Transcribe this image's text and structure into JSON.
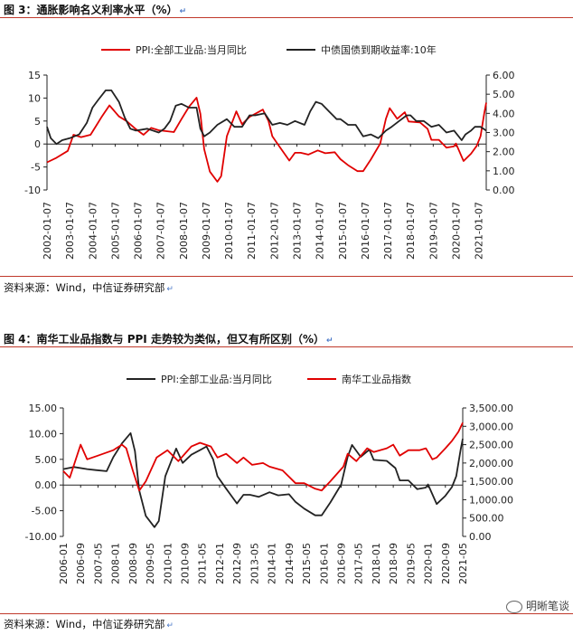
{
  "figure3": {
    "title": "图 3：通胀影响名义利率水平（%）",
    "source": "资料来源：Wind，中信证券研究部"
  },
  "figure4": {
    "title": "图 4：南华工业品指数与 PPI 走势较为类似，但又有所区别（%）",
    "source": "资料来源：Wind，中信证券研究部"
  },
  "watermark": "明晰笔谈",
  "chart_data": [
    {
      "type": "line",
      "title": "",
      "legend_position": "top",
      "x_start": "2002-01",
      "x_end": "2021-05",
      "x_tick_labels": [
        "2002-01-07",
        "2003-01-07",
        "2004-01-07",
        "2005-01-07",
        "2006-01-07",
        "2007-01-07",
        "2008-01-07",
        "2009-01-07",
        "2010-01-07",
        "2011-01-07",
        "2012-01-07",
        "2013-01-07",
        "2014-01-07",
        "2015-01-07",
        "2016-01-07",
        "2017-01-07",
        "2018-01-07",
        "2019-01-07",
        "2020-01-07",
        "2021-01-07"
      ],
      "y_left": {
        "min": -10,
        "max": 15,
        "ticks": [
          -10,
          -5,
          0,
          5,
          10,
          15
        ]
      },
      "y_right": {
        "min": 0,
        "max": 6,
        "ticks": [
          "0.00",
          "1.00",
          "2.00",
          "3.00",
          "4.00",
          "5.00",
          "6.00"
        ]
      },
      "series": [
        {
          "name": "PPI:全部工业品:当月同比",
          "axis": "left",
          "color": "#e00000",
          "points": [
            [
              "2002-01",
              -4.0
            ],
            [
              "2002-06",
              -3.0
            ],
            [
              "2002-12",
              -1.5
            ],
            [
              "2003-03",
              2.0
            ],
            [
              "2003-07",
              1.5
            ],
            [
              "2003-12",
              2.0
            ],
            [
              "2004-03",
              4.0
            ],
            [
              "2004-06",
              6.0
            ],
            [
              "2004-10",
              8.4
            ],
            [
              "2005-03",
              6.0
            ],
            [
              "2005-07",
              5.0
            ],
            [
              "2005-12",
              3.2
            ],
            [
              "2006-04",
              2.0
            ],
            [
              "2006-08",
              3.5
            ],
            [
              "2006-12",
              3.0
            ],
            [
              "2007-04",
              2.8
            ],
            [
              "2007-08",
              2.6
            ],
            [
              "2007-12",
              5.4
            ],
            [
              "2008-04",
              8.1
            ],
            [
              "2008-08",
              10.1
            ],
            [
              "2008-10",
              6.6
            ],
            [
              "2008-12",
              -1.1
            ],
            [
              "2009-03",
              -6.0
            ],
            [
              "2009-07",
              -8.2
            ],
            [
              "2009-09",
              -7.0
            ],
            [
              "2009-12",
              1.7
            ],
            [
              "2010-05",
              7.1
            ],
            [
              "2010-08",
              4.3
            ],
            [
              "2010-12",
              5.9
            ],
            [
              "2011-04",
              6.8
            ],
            [
              "2011-07",
              7.5
            ],
            [
              "2011-10",
              5.0
            ],
            [
              "2011-12",
              1.7
            ],
            [
              "2012-04",
              -0.7
            ],
            [
              "2012-09",
              -3.6
            ],
            [
              "2012-12",
              -1.9
            ],
            [
              "2013-03",
              -1.9
            ],
            [
              "2013-07",
              -2.3
            ],
            [
              "2013-12",
              -1.4
            ],
            [
              "2014-04",
              -2.0
            ],
            [
              "2014-09",
              -1.8
            ],
            [
              "2014-12",
              -3.3
            ],
            [
              "2015-04",
              -4.6
            ],
            [
              "2015-09",
              -5.9
            ],
            [
              "2015-12",
              -5.9
            ],
            [
              "2016-04",
              -3.4
            ],
            [
              "2016-09",
              0.1
            ],
            [
              "2016-12",
              5.5
            ],
            [
              "2017-02",
              7.8
            ],
            [
              "2017-06",
              5.5
            ],
            [
              "2017-10",
              6.9
            ],
            [
              "2017-12",
              4.9
            ],
            [
              "2018-06",
              4.7
            ],
            [
              "2018-10",
              3.3
            ],
            [
              "2018-12",
              0.9
            ],
            [
              "2019-04",
              0.9
            ],
            [
              "2019-08",
              -0.8
            ],
            [
              "2019-12",
              -0.5
            ],
            [
              "2020-01",
              0.1
            ],
            [
              "2020-05",
              -3.7
            ],
            [
              "2020-09",
              -2.1
            ],
            [
              "2020-12",
              -0.4
            ],
            [
              "2021-02",
              1.7
            ],
            [
              "2021-04",
              6.8
            ],
            [
              "2021-05",
              9.0
            ]
          ]
        },
        {
          "name": "中债国债到期收益率:10年",
          "axis": "right",
          "color": "#222222",
          "points": [
            [
              "2002-01",
              3.3
            ],
            [
              "2002-03",
              2.7
            ],
            [
              "2002-06",
              2.4
            ],
            [
              "2002-09",
              2.6
            ],
            [
              "2003-01",
              2.7
            ],
            [
              "2003-06",
              2.9
            ],
            [
              "2003-10",
              3.5
            ],
            [
              "2004-01",
              4.3
            ],
            [
              "2004-04",
              4.7
            ],
            [
              "2004-08",
              5.2
            ],
            [
              "2004-11",
              5.2
            ],
            [
              "2005-03",
              4.6
            ],
            [
              "2005-06",
              3.8
            ],
            [
              "2005-09",
              3.2
            ],
            [
              "2005-12",
              3.1
            ],
            [
              "2006-06",
              3.2
            ],
            [
              "2006-12",
              3.0
            ],
            [
              "2007-03",
              3.2
            ],
            [
              "2007-06",
              3.6
            ],
            [
              "2007-09",
              4.4
            ],
            [
              "2007-12",
              4.5
            ],
            [
              "2008-04",
              4.3
            ],
            [
              "2008-08",
              4.3
            ],
            [
              "2008-10",
              3.2
            ],
            [
              "2008-12",
              2.8
            ],
            [
              "2009-03",
              3.0
            ],
            [
              "2009-07",
              3.4
            ],
            [
              "2009-12",
              3.7
            ],
            [
              "2010-04",
              3.3
            ],
            [
              "2010-08",
              3.3
            ],
            [
              "2010-12",
              3.9
            ],
            [
              "2011-03",
              3.9
            ],
            [
              "2011-08",
              4.0
            ],
            [
              "2011-12",
              3.4
            ],
            [
              "2012-04",
              3.5
            ],
            [
              "2012-08",
              3.4
            ],
            [
              "2012-12",
              3.6
            ],
            [
              "2013-05",
              3.4
            ],
            [
              "2013-08",
              4.1
            ],
            [
              "2013-11",
              4.6
            ],
            [
              "2014-02",
              4.5
            ],
            [
              "2014-06",
              4.1
            ],
            [
              "2014-10",
              3.7
            ],
            [
              "2014-12",
              3.7
            ],
            [
              "2015-04",
              3.4
            ],
            [
              "2015-08",
              3.4
            ],
            [
              "2015-12",
              2.8
            ],
            [
              "2016-04",
              2.9
            ],
            [
              "2016-08",
              2.7
            ],
            [
              "2016-12",
              3.1
            ],
            [
              "2017-03",
              3.3
            ],
            [
              "2017-07",
              3.6
            ],
            [
              "2017-11",
              3.9
            ],
            [
              "2018-01",
              3.9
            ],
            [
              "2018-04",
              3.6
            ],
            [
              "2018-08",
              3.6
            ],
            [
              "2018-12",
              3.3
            ],
            [
              "2019-04",
              3.4
            ],
            [
              "2019-08",
              3.0
            ],
            [
              "2019-12",
              3.1
            ],
            [
              "2020-04",
              2.6
            ],
            [
              "2020-06",
              2.9
            ],
            [
              "2020-09",
              3.1
            ],
            [
              "2020-11",
              3.3
            ],
            [
              "2021-02",
              3.3
            ],
            [
              "2021-05",
              3.1
            ]
          ]
        }
      ]
    },
    {
      "type": "line",
      "title": "",
      "legend_position": "top",
      "x_start": "2006-01",
      "x_end": "2021-05",
      "x_tick_labels": [
        "2006-01",
        "2006-09",
        "2007-05",
        "2008-01",
        "2008-09",
        "2009-05",
        "2010-01",
        "2010-09",
        "2011-05",
        "2012-01",
        "2012-09",
        "2013-05",
        "2014-01",
        "2014-09",
        "2015-05",
        "2016-01",
        "2016-09",
        "2017-05",
        "2018-01",
        "2018-09",
        "2019-05",
        "2020-01",
        "2020-09",
        "2021-05"
      ],
      "y_left": {
        "min": -10,
        "max": 15,
        "ticks": [
          "-10.00",
          "-5.00",
          "0.00",
          "5.00",
          "10.00",
          "15.00"
        ]
      },
      "y_right": {
        "min": 0,
        "max": 3500,
        "ticks": [
          "0.00",
          "500.00",
          "1,000.00",
          "1,500.00",
          "2,000.00",
          "2,500.00",
          "3,000.00",
          "3,500.00"
        ]
      },
      "series": [
        {
          "name": "PPI:全部工业品:当月同比",
          "axis": "left",
          "color": "#222222",
          "points": [
            [
              "2006-01",
              3.1
            ],
            [
              "2006-06",
              3.5
            ],
            [
              "2006-12",
              3.1
            ],
            [
              "2007-04",
              2.9
            ],
            [
              "2007-09",
              2.7
            ],
            [
              "2007-12",
              5.4
            ],
            [
              "2008-04",
              8.1
            ],
            [
              "2008-08",
              10.1
            ],
            [
              "2008-10",
              6.6
            ],
            [
              "2008-12",
              -1.1
            ],
            [
              "2009-03",
              -6.0
            ],
            [
              "2009-07",
              -8.2
            ],
            [
              "2009-09",
              -7.0
            ],
            [
              "2009-12",
              1.7
            ],
            [
              "2010-05",
              7.1
            ],
            [
              "2010-08",
              4.3
            ],
            [
              "2010-12",
              5.9
            ],
            [
              "2011-04",
              6.8
            ],
            [
              "2011-07",
              7.5
            ],
            [
              "2011-10",
              5.0
            ],
            [
              "2011-12",
              1.7
            ],
            [
              "2012-04",
              -0.7
            ],
            [
              "2012-09",
              -3.6
            ],
            [
              "2012-12",
              -1.9
            ],
            [
              "2013-03",
              -1.9
            ],
            [
              "2013-07",
              -2.3
            ],
            [
              "2013-12",
              -1.4
            ],
            [
              "2014-04",
              -2.0
            ],
            [
              "2014-09",
              -1.8
            ],
            [
              "2014-12",
              -3.3
            ],
            [
              "2015-04",
              -4.6
            ],
            [
              "2015-09",
              -5.9
            ],
            [
              "2015-12",
              -5.9
            ],
            [
              "2016-04",
              -3.4
            ],
            [
              "2016-09",
              0.1
            ],
            [
              "2016-12",
              5.5
            ],
            [
              "2017-02",
              7.8
            ],
            [
              "2017-06",
              5.5
            ],
            [
              "2017-10",
              6.9
            ],
            [
              "2017-12",
              4.9
            ],
            [
              "2018-06",
              4.7
            ],
            [
              "2018-10",
              3.3
            ],
            [
              "2018-12",
              0.9
            ],
            [
              "2019-04",
              0.9
            ],
            [
              "2019-08",
              -0.8
            ],
            [
              "2019-12",
              -0.5
            ],
            [
              "2020-01",
              0.1
            ],
            [
              "2020-05",
              -3.7
            ],
            [
              "2020-09",
              -2.1
            ],
            [
              "2020-12",
              -0.4
            ],
            [
              "2021-02",
              1.7
            ],
            [
              "2021-04",
              6.8
            ],
            [
              "2021-05",
              9.0
            ]
          ]
        },
        {
          "name": "南华工业品指数",
          "axis": "right",
          "color": "#e00000",
          "points": [
            [
              "2006-01",
              1780
            ],
            [
              "2006-04",
              1600
            ],
            [
              "2006-09",
              2500
            ],
            [
              "2006-12",
              2100
            ],
            [
              "2007-05",
              2200
            ],
            [
              "2007-12",
              2350
            ],
            [
              "2008-04",
              2500
            ],
            [
              "2008-06",
              2400
            ],
            [
              "2008-09",
              1800
            ],
            [
              "2008-12",
              1250
            ],
            [
              "2009-03",
              1500
            ],
            [
              "2009-08",
              2150
            ],
            [
              "2010-01",
              2350
            ],
            [
              "2010-06",
              2050
            ],
            [
              "2010-12",
              2450
            ],
            [
              "2011-04",
              2550
            ],
            [
              "2011-09",
              2450
            ],
            [
              "2011-12",
              2150
            ],
            [
              "2012-04",
              2250
            ],
            [
              "2012-09",
              2000
            ],
            [
              "2012-12",
              2150
            ],
            [
              "2013-04",
              1950
            ],
            [
              "2013-09",
              2000
            ],
            [
              "2013-12",
              1900
            ],
            [
              "2014-06",
              1800
            ],
            [
              "2014-12",
              1450
            ],
            [
              "2015-04",
              1450
            ],
            [
              "2015-09",
              1300
            ],
            [
              "2015-12",
              1250
            ],
            [
              "2016-04",
              1500
            ],
            [
              "2016-10",
              1900
            ],
            [
              "2016-12",
              2250
            ],
            [
              "2017-04",
              2050
            ],
            [
              "2017-09",
              2400
            ],
            [
              "2017-12",
              2300
            ],
            [
              "2018-06",
              2400
            ],
            [
              "2018-09",
              2500
            ],
            [
              "2018-12",
              2200
            ],
            [
              "2019-04",
              2350
            ],
            [
              "2019-09",
              2350
            ],
            [
              "2019-12",
              2400
            ],
            [
              "2020-03",
              2100
            ],
            [
              "2020-05",
              2150
            ],
            [
              "2020-09",
              2400
            ],
            [
              "2020-12",
              2600
            ],
            [
              "2021-03",
              2850
            ],
            [
              "2021-05",
              3100
            ]
          ]
        }
      ]
    }
  ]
}
